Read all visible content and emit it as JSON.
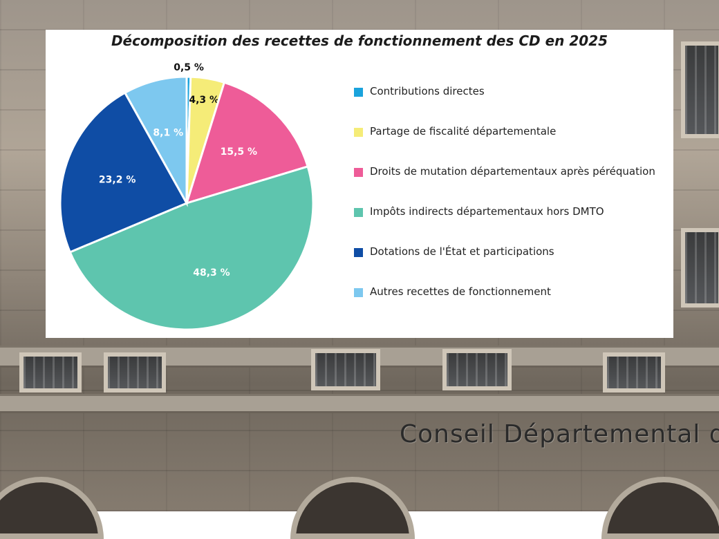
{
  "chart_data": {
    "type": "pie",
    "title": "Décomposition des recettes de fonctionnement des CD en 2025",
    "slices": [
      {
        "name": "Contributions directes",
        "value": 0.5,
        "label": "0,5 %",
        "color": "#1aa3dc"
      },
      {
        "name": "Partage de fiscalité départementale",
        "value": 4.3,
        "label": "4,3 %",
        "color": "#f5ec78"
      },
      {
        "name": "Droits de mutation départementaux après péréquation",
        "value": 15.5,
        "label": "15,5 %",
        "color": "#ee5c98"
      },
      {
        "name": "Impôts indirects départementaux hors DMTO",
        "value": 48.3,
        "label": "48,3 %",
        "color": "#5ec5ae"
      },
      {
        "name": "Dotations de l'État et participations",
        "value": 23.2,
        "label": "23,2 %",
        "color": "#0f4da5"
      },
      {
        "name": "Autres recettes de fonctionnement",
        "value": 8.1,
        "label": "8,1 %",
        "color": "#7dc8ef"
      }
    ],
    "legend_position": "right"
  },
  "background": {
    "sign_text": "Conseil Départemental d"
  }
}
